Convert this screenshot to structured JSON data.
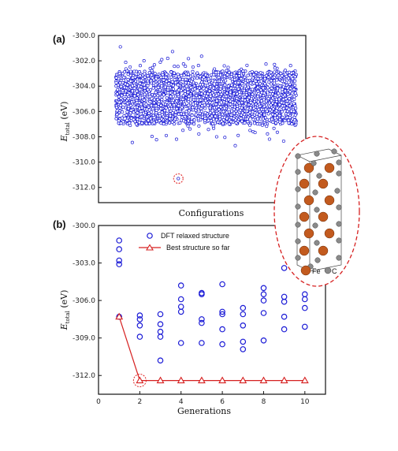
{
  "chart_data": [
    {
      "panel": "(a)",
      "type": "scatter",
      "xlabel": "Configurations",
      "ylabel": "E_total (eV)",
      "ylim": [
        -313.2,
        -300.0
      ],
      "yticks": [
        "-300.0",
        "-302.0",
        "-304.0",
        "-306.0",
        "-308.0",
        "-310.0",
        "-312.0"
      ],
      "yticks_values": [
        -300,
        -302,
        -304,
        -306,
        -308,
        -310,
        -312
      ],
      "series_color": "#1c1cd6",
      "density_summary": {
        "core_range": [
          -307.0,
          -302.8
        ],
        "spread_range": [
          -309.0,
          -300.2
        ],
        "approx_points": 2400
      },
      "highlight_point": {
        "config_fraction": 0.385,
        "y": -311.3
      }
    },
    {
      "panel": "(b)",
      "type": "scatter",
      "xlabel": "Generations",
      "ylabel": "E_total (eV)",
      "xlim": [
        0,
        11
      ],
      "xticks": [
        "0",
        "2",
        "4",
        "6",
        "8",
        "10"
      ],
      "xticks_values": [
        0,
        2,
        4,
        6,
        8,
        10
      ],
      "ylim": [
        -313.5,
        -300.0
      ],
      "yticks": [
        "-300.0",
        "-303.0",
        "-306.0",
        "-309.0",
        "-312.0"
      ],
      "yticks_values": [
        -300,
        -303,
        -306,
        -309,
        -312
      ],
      "legend_loc": "top",
      "series": [
        {
          "name": "DFT relaxed structure",
          "marker": "circle",
          "color": "#1a1ad6",
          "points": [
            [
              1,
              -301.2
            ],
            [
              1,
              -301.9
            ],
            [
              1,
              -302.8
            ],
            [
              1,
              -303.1
            ],
            [
              1,
              -307.3
            ],
            [
              2,
              -307.2
            ],
            [
              2,
              -307.5
            ],
            [
              2,
              -308.0
            ],
            [
              2,
              -308.9
            ],
            [
              3,
              -307.1
            ],
            [
              3,
              -307.9
            ],
            [
              3,
              -308.5
            ],
            [
              3,
              -308.9
            ],
            [
              3,
              -310.8
            ],
            [
              4,
              -304.8
            ],
            [
              4,
              -305.9
            ],
            [
              4,
              -306.5
            ],
            [
              4,
              -306.9
            ],
            [
              4,
              -309.4
            ],
            [
              5,
              -305.4
            ],
            [
              5,
              -305.5
            ],
            [
              5,
              -307.5
            ],
            [
              5,
              -307.8
            ],
            [
              5,
              -309.4
            ],
            [
              6,
              -304.7
            ],
            [
              6,
              -306.9
            ],
            [
              6,
              -307.1
            ],
            [
              6,
              -308.3
            ],
            [
              6,
              -309.5
            ],
            [
              7,
              -306.6
            ],
            [
              7,
              -307.1
            ],
            [
              7,
              -308.0
            ],
            [
              7,
              -309.3
            ],
            [
              7,
              -309.9
            ],
            [
              8,
              -305.0
            ],
            [
              8,
              -305.5
            ],
            [
              8,
              -306.0
            ],
            [
              8,
              -307.0
            ],
            [
              8,
              -309.2
            ],
            [
              9,
              -303.4
            ],
            [
              9,
              -305.7
            ],
            [
              9,
              -306.1
            ],
            [
              9,
              -307.3
            ],
            [
              9,
              -308.3
            ],
            [
              10,
              -305.5
            ],
            [
              10,
              -305.9
            ],
            [
              10,
              -306.6
            ],
            [
              10,
              -308.1
            ]
          ]
        },
        {
          "name": "Best structure so far",
          "marker": "triangle",
          "color": "#d62020",
          "x": [
            1,
            2,
            3,
            4,
            5,
            6,
            7,
            8,
            9,
            10
          ],
          "y": [
            -307.3,
            -312.4,
            -312.4,
            -312.4,
            -312.4,
            -312.4,
            -312.4,
            -312.4,
            -312.4,
            -312.4
          ]
        }
      ],
      "highlight_point": {
        "x": 2,
        "y": -312.4
      }
    }
  ],
  "inset": {
    "legend_fe": "Fe",
    "legend_c": "C",
    "fe_color": "#c25a1e",
    "c_color": "#8a8a8a",
    "outline_color": "#d62020"
  }
}
